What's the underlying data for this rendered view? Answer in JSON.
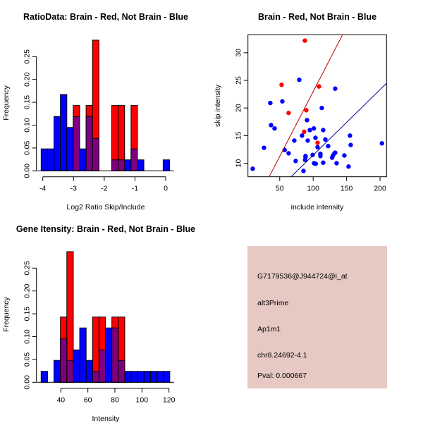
{
  "colors": {
    "red": "#ff0000",
    "blue": "#0000ff",
    "overlap": "#7f007f",
    "panel_bg": "#e6c9c3",
    "pval": "#a00000",
    "red_line": "#c00000",
    "blue_line": "#00008b"
  },
  "chart_data": [
    {
      "type": "bar",
      "subtype": "overlaid-histogram",
      "title": "RatioData: Brain - Red, Not Brain - Blue",
      "xlabel": "Log2 Ratio Skip/Include",
      "ylabel": "Frequency",
      "xticks": [
        "-4",
        "-3",
        "-2",
        "-1",
        "0"
      ],
      "xtick_values": [
        -4,
        -3,
        -2,
        -1,
        0
      ],
      "yticks": [
        "0.00",
        "0.05",
        "0.10",
        "0.15",
        "0.20",
        "0.25"
      ],
      "ytick_values": [
        0,
        0.05,
        0.1,
        0.15,
        0.2,
        0.25
      ],
      "bin_start": -4.054,
      "bin_width": 0.209,
      "series": [
        {
          "name": "Brain",
          "color": "red",
          "values": [
            0,
            0,
            0,
            0,
            0,
            0.143,
            0,
            0.143,
            0.286,
            0,
            0,
            0.143,
            0.143,
            0,
            0.143,
            0,
            0,
            0,
            0,
            0
          ]
        },
        {
          "name": "Not Brain",
          "color": "blue",
          "values": [
            0.048,
            0.048,
            0.119,
            0.167,
            0.095,
            0.119,
            0.048,
            0.119,
            0.071,
            0,
            0,
            0.024,
            0.024,
            0.024,
            0.048,
            0.024,
            0,
            0,
            0,
            0.024
          ]
        }
      ]
    },
    {
      "type": "scatter",
      "title": "Brain - Red, Not Brain - Blue",
      "xlabel": "include intensity",
      "ylabel": "skip intensity",
      "xlim": [
        2.5,
        209.7
      ],
      "ylim": [
        7.55,
        33.26
      ],
      "xticks": [
        "50",
        "100",
        "150",
        "200"
      ],
      "xtick_values": [
        50,
        100,
        150,
        200
      ],
      "yticks": [
        "10",
        "15",
        "20",
        "25",
        "30"
      ],
      "ytick_values": [
        10,
        15,
        20,
        25,
        30
      ],
      "series": [
        {
          "name": "Brain",
          "color": "red",
          "points": [
            [
              87.6,
              32.2
            ],
            [
              52.8,
              24.2
            ],
            [
              108.7,
              23.9
            ],
            [
              63.3,
              19.1
            ],
            [
              89.7,
              19.6
            ],
            [
              86.5,
              15.7
            ],
            [
              106.6,
              13.7
            ]
          ],
          "fit": {
            "slope": 0.2345,
            "intercept": -0.49
          }
        },
        {
          "name": "Not Brain",
          "color": "blue",
          "points": [
            [
              9.6,
              9.0
            ],
            [
              26.5,
              12.8
            ],
            [
              35.9,
              20.9
            ],
            [
              37.0,
              16.9
            ],
            [
              42.3,
              16.3
            ],
            [
              53.9,
              21.2
            ],
            [
              57.4,
              12.4
            ],
            [
              63.3,
              11.8
            ],
            [
              71.8,
              14.1
            ],
            [
              73.9,
              10.4
            ],
            [
              79.2,
              25.1
            ],
            [
              83.4,
              15.0
            ],
            [
              85.5,
              8.6
            ],
            [
              87.9,
              10.6
            ],
            [
              88.6,
              11.1
            ],
            [
              88.6,
              11.3
            ],
            [
              90.8,
              17.8
            ],
            [
              91.8,
              14.1
            ],
            [
              95.0,
              16.0
            ],
            [
              99.2,
              11.5
            ],
            [
              101.0,
              16.3
            ],
            [
              101.3,
              10.0
            ],
            [
              103.4,
              14.6
            ],
            [
              103.8,
              9.9
            ],
            [
              106.6,
              12.9
            ],
            [
              110.8,
              11.7
            ],
            [
              110.8,
              11.3
            ],
            [
              112.9,
              20.0
            ],
            [
              115.0,
              16.0
            ],
            [
              115.0,
              10.1
            ],
            [
              118.2,
              14.3
            ],
            [
              122.4,
              13.1
            ],
            [
              128.3,
              11.0
            ],
            [
              129.7,
              11.4
            ],
            [
              131.9,
              11.8
            ],
            [
              132.9,
              23.5
            ],
            [
              132.9,
              11.9
            ],
            [
              135.0,
              10.0
            ],
            [
              146.6,
              11.4
            ],
            [
              152.9,
              9.4
            ],
            [
              155.0,
              15.0
            ],
            [
              156.1,
              13.3
            ],
            [
              202.8,
              13.6
            ]
          ],
          "fit": {
            "slope": 0.1187,
            "intercept": -0.41
          }
        }
      ]
    },
    {
      "type": "bar",
      "subtype": "overlaid-histogram",
      "title": "Gene Itensity: Brain - Red, Not Brain - Blue",
      "xlabel": "Intensity",
      "ylabel": "Frequency",
      "xticks": [
        "40",
        "60",
        "80",
        "100",
        "120"
      ],
      "xtick_values": [
        40,
        60,
        80,
        100,
        120
      ],
      "yticks": [
        "0.00",
        "0.05",
        "0.10",
        "0.15",
        "0.20",
        "0.25"
      ],
      "ytick_values": [
        0,
        0.05,
        0.1,
        0.15,
        0.2,
        0.25
      ],
      "bin_start": 25.4,
      "bin_width": 4.76,
      "series": [
        {
          "name": "Brain",
          "color": "red",
          "values": [
            0,
            0,
            0,
            0.143,
            0.286,
            0,
            0,
            0,
            0.143,
            0.143,
            0,
            0.143,
            0.143,
            0,
            0,
            0,
            0,
            0,
            0,
            0
          ]
        },
        {
          "name": "Not Brain",
          "color": "blue",
          "values": [
            0.024,
            0,
            0.048,
            0.095,
            0.048,
            0.071,
            0.119,
            0.048,
            0.024,
            0.071,
            0.119,
            0.119,
            0.048,
            0.024,
            0.024,
            0.024,
            0.024,
            0.024,
            0.024,
            0.024
          ]
        }
      ]
    }
  ],
  "info_panel": {
    "probe_id": "G7179536@J944724@i_at",
    "event_type": "alt3Prime",
    "gene": "Ap1m1",
    "location": "chr8.24692-4.1",
    "pval": "Pval: 0.000667"
  }
}
